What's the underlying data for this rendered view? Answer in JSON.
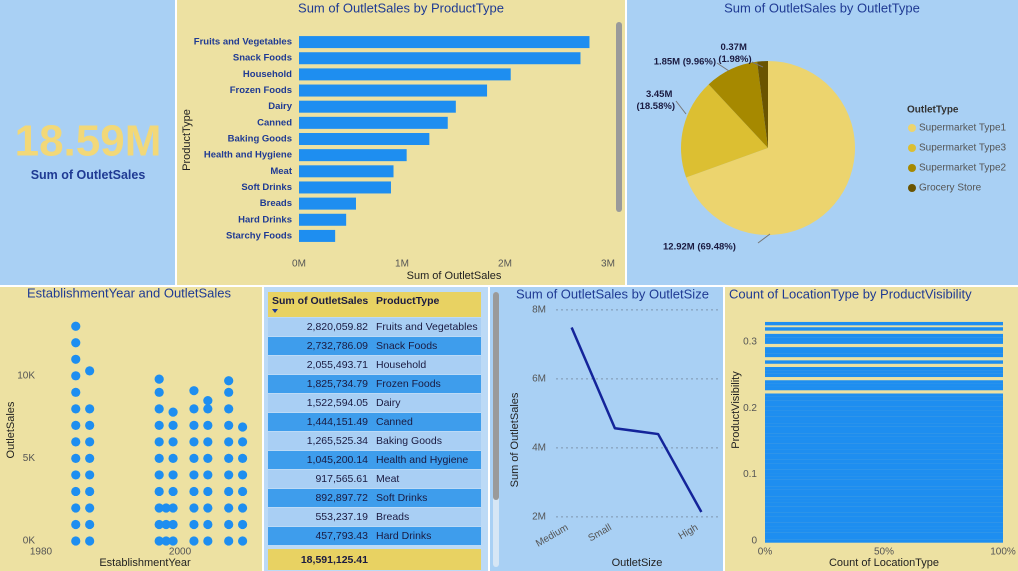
{
  "card": {
    "value": "18.59M",
    "label": "Sum of OutletSales"
  },
  "table": {
    "columns": [
      "Sum of OutletSales",
      "ProductType"
    ],
    "rows": [
      [
        "2,820,059.82",
        "Fruits and Vegetables"
      ],
      [
        "2,732,786.09",
        "Snack Foods"
      ],
      [
        "2,055,493.71",
        "Household"
      ],
      [
        "1,825,734.79",
        "Frozen Foods"
      ],
      [
        "1,522,594.05",
        "Dairy"
      ],
      [
        "1,444,151.49",
        "Canned"
      ],
      [
        "1,265,525.34",
        "Baking Goods"
      ],
      [
        "1,045,200.14",
        "Health and Hygiene"
      ],
      [
        "917,565.61",
        "Meat"
      ],
      [
        "892,897.72",
        "Soft Drinks"
      ],
      [
        "553,237.19",
        "Breads"
      ],
      [
        "457,793.43",
        "Hard Drinks"
      ]
    ],
    "total": "18,591,125.41"
  },
  "chart_data": [
    {
      "type": "barh",
      "title": "Sum of OutletSales by ProductType",
      "x_label": "Sum of OutletSales",
      "y_label": "ProductType",
      "categories": [
        "Fruits and Vegetables",
        "Snack Foods",
        "Household",
        "Frozen Foods",
        "Dairy",
        "Canned",
        "Baking Goods",
        "Health and Hygiene",
        "Meat",
        "Soft Drinks",
        "Breads",
        "Hard Drinks",
        "Starchy Foods"
      ],
      "values": [
        2820059.82,
        2732786.09,
        2055493.71,
        1825734.79,
        1522594.05,
        1444151.49,
        1265525.34,
        1045200.14,
        917565.61,
        892897.72,
        553237.19,
        457793.43,
        351000
      ],
      "color": "#1e8ef0",
      "xlim": [
        0,
        3000000
      ],
      "xticks": [
        {
          "value": 0,
          "label": "0M"
        },
        {
          "value": 1000000,
          "label": "1M"
        },
        {
          "value": 2000000,
          "label": "2M"
        },
        {
          "value": 3000000,
          "label": "3M"
        }
      ],
      "grid": false
    },
    {
      "type": "pie",
      "title": "Sum of OutletSales by OutletType",
      "legend_title": "OutletType",
      "categories": [
        "Supermarket Type1",
        "Supermarket Type3",
        "Supermarket Type2",
        "Grocery Store"
      ],
      "values": [
        12920000,
        3450000,
        1850000,
        370000
      ],
      "value_labels": [
        "12.92M (69.48%)",
        "3.45M (18.58%)",
        "1.85M (9.96%)",
        "0.37M (1.98%)"
      ],
      "colors": [
        "#ecd46e",
        "#dcbf32",
        "#a68900",
        "#6a5400"
      ],
      "legend": "right"
    },
    {
      "type": "scatter",
      "title": "EstablishmentYear and OutletSales",
      "x_label": "EstablishmentYear",
      "y_label": "OutletSales",
      "x": [
        1985,
        1985,
        1985,
        1985,
        1985,
        1985,
        1985,
        1985,
        1985,
        1985,
        1985,
        1985,
        1985,
        1985,
        1987,
        1987,
        1987,
        1987,
        1987,
        1987,
        1987,
        1987,
        1987,
        1987,
        1997,
        1997,
        1997,
        1997,
        1997,
        1997,
        1997,
        1997,
        1997,
        1997,
        1997,
        1998,
        1998,
        1998,
        1999,
        1999,
        1999,
        1999,
        1999,
        1999,
        1999,
        1999,
        1999,
        2002,
        2002,
        2002,
        2002,
        2002,
        2002,
        2002,
        2002,
        2002,
        2002,
        2004,
        2004,
        2004,
        2004,
        2004,
        2004,
        2004,
        2004,
        2004,
        2004,
        2007,
        2007,
        2007,
        2007,
        2007,
        2007,
        2007,
        2007,
        2007,
        2007,
        2007,
        2009,
        2009,
        2009,
        2009,
        2009,
        2009,
        2009,
        2009
      ],
      "values": [
        0,
        1000,
        2000,
        3000,
        4000,
        5000,
        6000,
        7000,
        8000,
        9000,
        10000,
        11000,
        12000,
        13000,
        0,
        1000,
        2000,
        3000,
        4000,
        5000,
        6000,
        7000,
        8000,
        10300,
        0,
        1000,
        2000,
        3000,
        4000,
        5000,
        6000,
        7000,
        8000,
        9000,
        9800,
        0,
        1000,
        2000,
        0,
        1000,
        2000,
        3000,
        4000,
        5000,
        6000,
        7000,
        7800,
        0,
        1000,
        2000,
        3000,
        4000,
        5000,
        6000,
        7000,
        8000,
        9100,
        0,
        1000,
        2000,
        3000,
        4000,
        5000,
        6000,
        7000,
        8000,
        8500,
        0,
        1000,
        2000,
        3000,
        4000,
        5000,
        6000,
        7000,
        8000,
        9000,
        9700,
        0,
        1000,
        2000,
        3000,
        4000,
        5000,
        6000,
        6900
      ],
      "color": "#1e8ef0",
      "xlim": [
        1980,
        2011
      ],
      "xticks": [
        1980,
        2000
      ],
      "ylim": [
        0,
        13500
      ],
      "yticks": [
        {
          "value": 0,
          "label": "0K"
        },
        {
          "value": 5000,
          "label": "5K"
        },
        {
          "value": 10000,
          "label": "10K"
        }
      ],
      "grid": false
    },
    {
      "type": "line",
      "title": "Sum of OutletSales by OutletSize",
      "x_label": "OutletSize",
      "y_label": "Sum of OutletSales",
      "categories": [
        "Medium",
        "Small",
        null,
        "High"
      ],
      "values": [
        7490000,
        4570000,
        4400000,
        2140000
      ],
      "color": "#14249a",
      "ylim": [
        1300000,
        8200000
      ],
      "yticks": [
        {
          "value": 2000000,
          "label": "2M"
        },
        {
          "value": 4000000,
          "label": "4M"
        },
        {
          "value": 6000000,
          "label": "6M"
        },
        {
          "value": 8000000,
          "label": "8M"
        }
      ],
      "grid": true
    },
    {
      "type": "barh",
      "title": "Count of LocationType by ProductVisibility",
      "x_label": "Count of LocationType",
      "y_label": "ProductVisibility",
      "y": [
        0,
        0.005,
        0.01,
        0.015,
        0.02,
        0.025,
        0.03,
        0.035,
        0.04,
        0.045,
        0.05,
        0.055,
        0.06,
        0.065,
        0.07,
        0.075,
        0.08,
        0.085,
        0.09,
        0.095,
        0.1,
        0.105,
        0.11,
        0.115,
        0.12,
        0.125,
        0.13,
        0.135,
        0.14,
        0.145,
        0.15,
        0.155,
        0.16,
        0.165,
        0.17,
        0.175,
        0.18,
        0.185,
        0.19,
        0.195,
        0.2,
        0.205,
        0.21,
        0.215,
        0.22,
        0.23,
        0.235,
        0.24,
        0.25,
        0.255,
        0.26,
        0.27,
        0.28,
        0.285,
        0.29,
        0.3,
        0.305,
        0.31,
        0.32,
        0.328
      ],
      "values": [
        100,
        100,
        100,
        100,
        100,
        100,
        100,
        100,
        100,
        100,
        100,
        100,
        100,
        100,
        100,
        100,
        100,
        100,
        100,
        100,
        100,
        100,
        100,
        100,
        100,
        100,
        100,
        100,
        100,
        100,
        100,
        100,
        100,
        100,
        100,
        100,
        100,
        100,
        100,
        100,
        100,
        100,
        100,
        100,
        100,
        100,
        100,
        100,
        100,
        100,
        100,
        100,
        100,
        100,
        100,
        100,
        100,
        100,
        100,
        100
      ],
      "color": "#1e8ef0",
      "xlim": [
        0,
        100
      ],
      "xticks": [
        {
          "value": 0,
          "label": "0%"
        },
        {
          "value": 50,
          "label": "50%"
        },
        {
          "value": 100,
          "label": "100%"
        }
      ],
      "ylim": [
        0,
        0.335
      ],
      "yticks": [
        0,
        0.1,
        0.2,
        0.3
      ],
      "grid": false
    }
  ]
}
